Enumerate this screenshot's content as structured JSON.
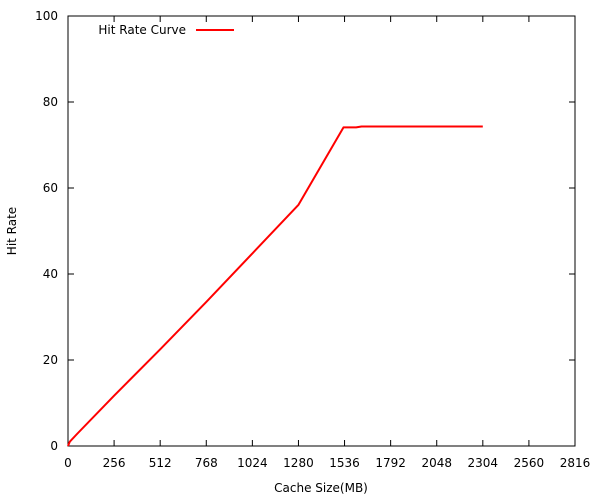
{
  "chart_data": {
    "type": "line",
    "xlabel": "Cache Size(MB)",
    "ylabel": "Hit Rate",
    "xlim": [
      0,
      2816
    ],
    "ylim": [
      0,
      100
    ],
    "xticks": [
      0,
      256,
      512,
      768,
      1024,
      1280,
      1536,
      1792,
      2048,
      2304,
      2560,
      2816
    ],
    "yticks": [
      0,
      20,
      40,
      60,
      80,
      100
    ],
    "grid": false,
    "legend_position": "top-left",
    "series": [
      {
        "name": "Hit Rate Curve",
        "color": "#ff0000",
        "x": [
          0,
          10,
          50,
          256,
          512,
          768,
          1024,
          1280,
          1530,
          1600,
          1630,
          2304
        ],
        "y": [
          0,
          1,
          2.8,
          11.7,
          22.5,
          33.5,
          44.8,
          56.1,
          74.1,
          74.1,
          74.3,
          74.3
        ]
      }
    ]
  }
}
